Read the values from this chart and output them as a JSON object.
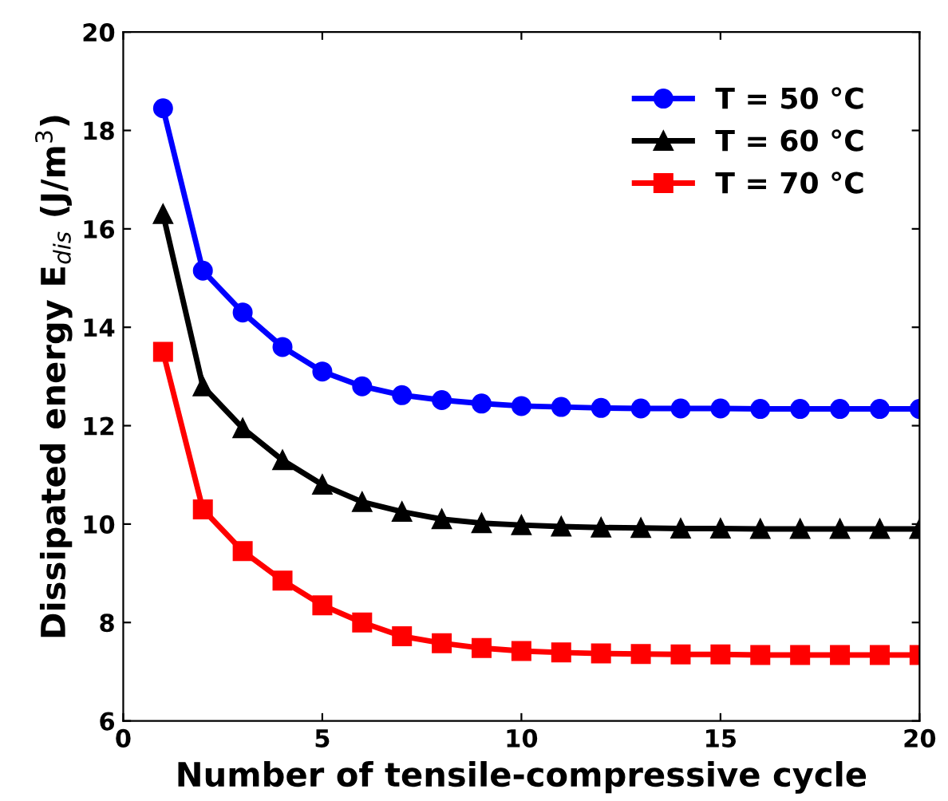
{
  "chart_data": {
    "type": "line",
    "xlabel": "Number of tensile-compressive cycle",
    "ylabel": "Dissipated energy E$_{dis}$ (J/m$^{3}$)",
    "x": [
      1,
      2,
      3,
      4,
      5,
      6,
      7,
      8,
      9,
      10,
      11,
      12,
      13,
      14,
      15,
      16,
      17,
      18,
      19,
      20
    ],
    "xlim": [
      0,
      20
    ],
    "xticks": [
      0,
      5,
      10,
      15,
      20
    ],
    "ylim": [
      6,
      20
    ],
    "yticks": [
      6,
      8,
      10,
      12,
      14,
      16,
      18,
      20
    ],
    "grid": false,
    "legend": "top right",
    "series": [
      {
        "name": "T = 50 °C",
        "color": "#0000ff",
        "marker": "circle",
        "values": [
          18.45,
          15.15,
          14.3,
          13.6,
          13.1,
          12.8,
          12.62,
          12.52,
          12.45,
          12.4,
          12.38,
          12.36,
          12.35,
          12.35,
          12.35,
          12.34,
          12.34,
          12.34,
          12.34,
          12.34
        ]
      },
      {
        "name": "T = 60 °C",
        "color": "#000000",
        "marker": "triangle",
        "values": [
          16.3,
          12.8,
          11.95,
          11.3,
          10.8,
          10.45,
          10.25,
          10.1,
          10.02,
          9.98,
          9.95,
          9.93,
          9.92,
          9.91,
          9.91,
          9.9,
          9.9,
          9.9,
          9.9,
          9.9
        ]
      },
      {
        "name": "T = 70 °C",
        "color": "#ff0000",
        "marker": "square",
        "values": [
          13.5,
          10.3,
          9.45,
          8.85,
          8.35,
          8.0,
          7.72,
          7.58,
          7.48,
          7.42,
          7.39,
          7.37,
          7.36,
          7.35,
          7.35,
          7.34,
          7.34,
          7.34,
          7.34,
          7.34
        ]
      }
    ]
  }
}
